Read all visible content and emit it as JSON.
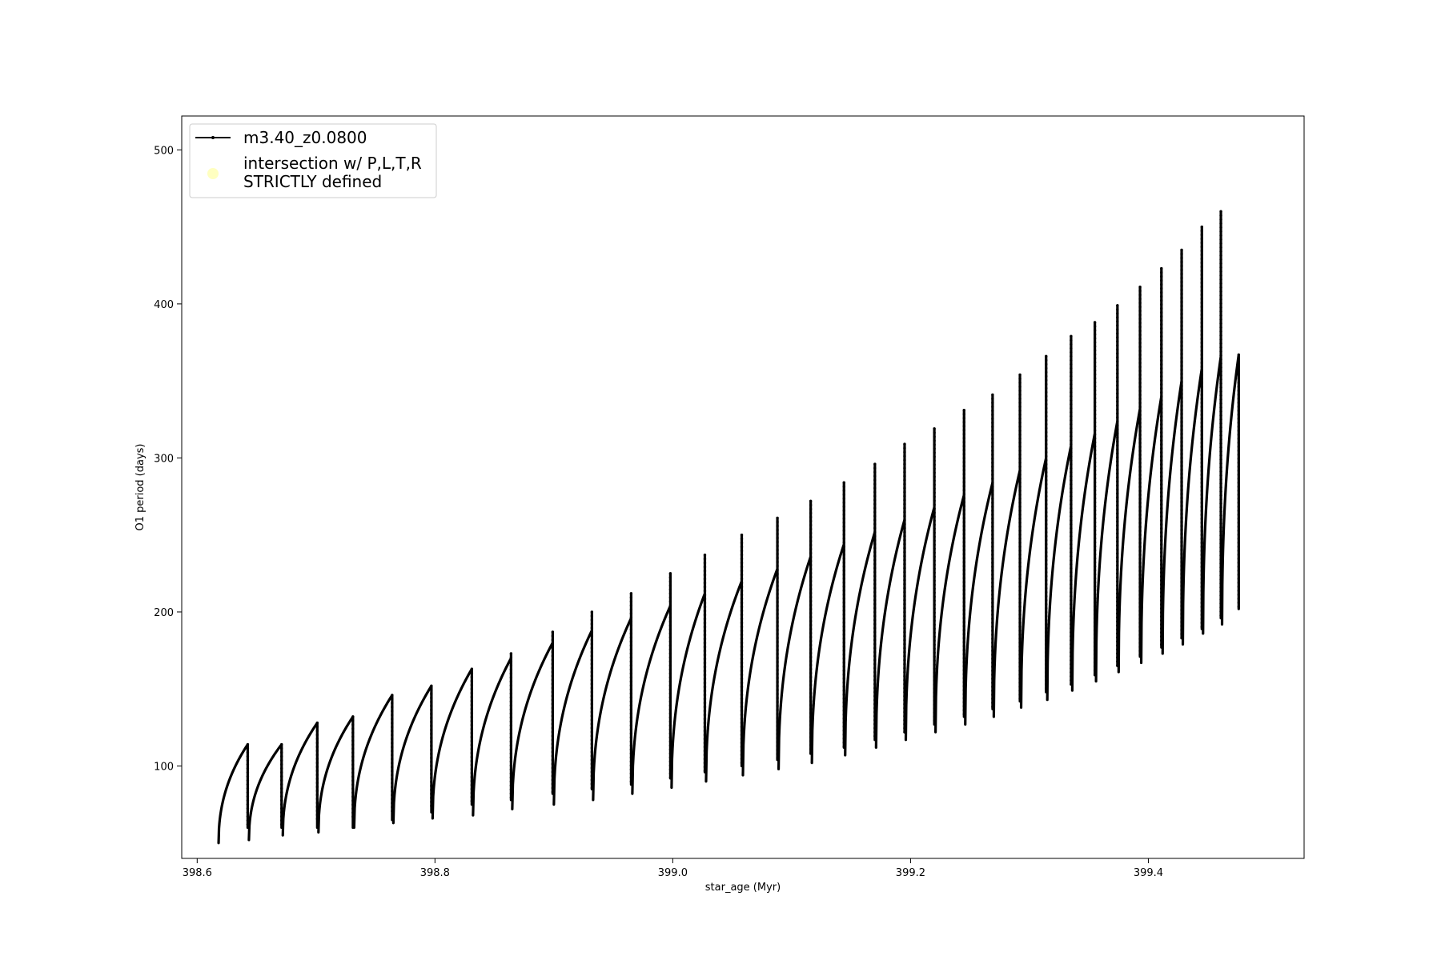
{
  "chart_data": {
    "type": "line",
    "title": "",
    "xlabel": "star_age (Myr)",
    "ylabel": "O1 period (days)",
    "xlim": [
      398.587,
      399.531
    ],
    "ylim": [
      40,
      522
    ],
    "xticks": [
      398.6,
      398.8,
      399.0,
      399.2,
      399.4
    ],
    "xtick_labels": [
      "398.6",
      "398.8",
      "399.0",
      "399.2",
      "399.4"
    ],
    "yticks": [
      100,
      200,
      300,
      400,
      500
    ],
    "ytick_labels": [
      "100",
      "200",
      "300",
      "400",
      "500"
    ],
    "grid": false,
    "legend_position": "top-left",
    "line_color": "#000000",
    "intersection_color": "#ffffc0",
    "series": [
      {
        "name": "m3.40_z0.0800",
        "style": "line-with-dots",
        "cycles": [
          {
            "x_start": 398.618,
            "x_end": 398.6425,
            "y_start": 50,
            "y_peak": 114,
            "y_spike": 78
          },
          {
            "x_start": 398.6435,
            "x_end": 398.671,
            "y_start": 52,
            "y_peak": 114,
            "y_spike": 60
          },
          {
            "x_start": 398.672,
            "x_end": 398.701,
            "y_start": 55,
            "y_peak": 128,
            "y_spike": 60
          },
          {
            "x_start": 398.702,
            "x_end": 398.731,
            "y_start": 57,
            "y_peak": 132,
            "y_spike": 60
          },
          {
            "x_start": 398.732,
            "x_end": 398.764,
            "y_start": 60,
            "y_peak": 146,
            "y_spike": 65
          },
          {
            "x_start": 398.765,
            "x_end": 398.797,
            "y_start": 63,
            "y_peak": 152,
            "y_spike": 70
          },
          {
            "x_start": 398.798,
            "x_end": 398.831,
            "y_start": 66,
            "y_peak": 163,
            "y_spike": 75
          },
          {
            "x_start": 398.832,
            "x_end": 398.864,
            "y_start": 68,
            "y_peak": 170,
            "y_spike": 173
          },
          {
            "x_start": 398.865,
            "x_end": 398.899,
            "y_start": 72,
            "y_peak": 180,
            "y_spike": 187
          },
          {
            "x_start": 398.9,
            "x_end": 398.932,
            "y_start": 75,
            "y_peak": 188,
            "y_spike": 200
          },
          {
            "x_start": 398.933,
            "x_end": 398.965,
            "y_start": 78,
            "y_peak": 196,
            "y_spike": 212
          },
          {
            "x_start": 398.966,
            "x_end": 398.998,
            "y_start": 82,
            "y_peak": 204,
            "y_spike": 225
          },
          {
            "x_start": 398.999,
            "x_end": 399.027,
            "y_start": 86,
            "y_peak": 212,
            "y_spike": 237
          },
          {
            "x_start": 399.028,
            "x_end": 399.058,
            "y_start": 90,
            "y_peak": 220,
            "y_spike": 250
          },
          {
            "x_start": 399.059,
            "x_end": 399.088,
            "y_start": 94,
            "y_peak": 228,
            "y_spike": 261
          },
          {
            "x_start": 399.089,
            "x_end": 399.116,
            "y_start": 98,
            "y_peak": 236,
            "y_spike": 272
          },
          {
            "x_start": 399.117,
            "x_end": 399.144,
            "y_start": 102,
            "y_peak": 244,
            "y_spike": 284
          },
          {
            "x_start": 399.145,
            "x_end": 399.17,
            "y_start": 107,
            "y_peak": 252,
            "y_spike": 296
          },
          {
            "x_start": 399.171,
            "x_end": 399.195,
            "y_start": 112,
            "y_peak": 260,
            "y_spike": 309
          },
          {
            "x_start": 399.196,
            "x_end": 399.22,
            "y_start": 117,
            "y_peak": 268,
            "y_spike": 319
          },
          {
            "x_start": 399.221,
            "x_end": 399.245,
            "y_start": 122,
            "y_peak": 276,
            "y_spike": 331
          },
          {
            "x_start": 399.246,
            "x_end": 399.269,
            "y_start": 127,
            "y_peak": 284,
            "y_spike": 341
          },
          {
            "x_start": 399.27,
            "x_end": 399.292,
            "y_start": 132,
            "y_peak": 292,
            "y_spike": 354
          },
          {
            "x_start": 399.293,
            "x_end": 399.314,
            "y_start": 138,
            "y_peak": 300,
            "y_spike": 366
          },
          {
            "x_start": 399.315,
            "x_end": 399.335,
            "y_start": 143,
            "y_peak": 308,
            "y_spike": 379
          },
          {
            "x_start": 399.336,
            "x_end": 399.355,
            "y_start": 149,
            "y_peak": 316,
            "y_spike": 388
          },
          {
            "x_start": 399.356,
            "x_end": 399.374,
            "y_start": 155,
            "y_peak": 324,
            "y_spike": 399
          },
          {
            "x_start": 399.375,
            "x_end": 399.393,
            "y_start": 161,
            "y_peak": 332,
            "y_spike": 411
          },
          {
            "x_start": 399.394,
            "x_end": 399.411,
            "y_start": 167,
            "y_peak": 340,
            "y_spike": 423
          },
          {
            "x_start": 399.412,
            "x_end": 399.428,
            "y_start": 173,
            "y_peak": 350,
            "y_spike": 435
          },
          {
            "x_start": 399.429,
            "x_end": 399.445,
            "y_start": 179,
            "y_peak": 358,
            "y_spike": 450
          },
          {
            "x_start": 399.446,
            "x_end": 399.461,
            "y_start": 186,
            "y_peak": 366,
            "y_spike": 460
          },
          {
            "x_start": 399.462,
            "x_end": 399.476,
            "y_start": 192,
            "y_peak": 367,
            "y_spike": 367
          }
        ]
      },
      {
        "name": "intersection w/ P,L,T,R\nSTRICTLY defined",
        "style": "scatter",
        "points": []
      }
    ]
  },
  "legend": {
    "entries": [
      {
        "label_lines": [
          "m3.40_z0.0800"
        ]
      },
      {
        "label_lines": [
          "intersection w/ P,L,T,R",
          "STRICTLY defined"
        ]
      }
    ]
  }
}
